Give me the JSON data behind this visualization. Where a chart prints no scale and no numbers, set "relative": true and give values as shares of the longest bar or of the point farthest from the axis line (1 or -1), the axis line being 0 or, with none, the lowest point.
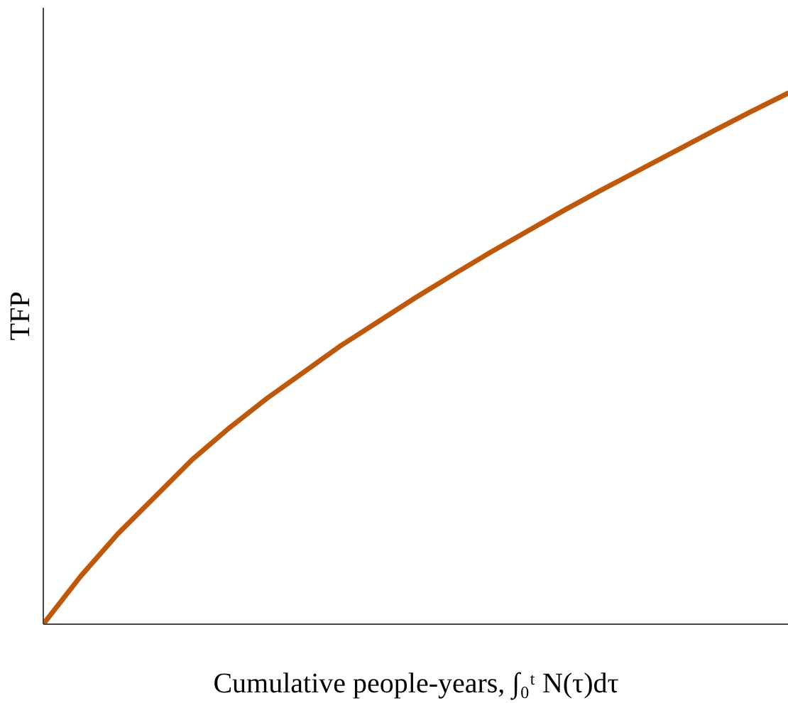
{
  "chart_data": {
    "type": "line",
    "relative": true,
    "xlabel": "Cumulative people-years, ∫₀ᵗ N(τ)dτ",
    "ylabel": "TFP",
    "categories": [
      null,
      null,
      null,
      null,
      null,
      null,
      null,
      null,
      null,
      null,
      null,
      null,
      null,
      null,
      null,
      null,
      null,
      null,
      null,
      null,
      null
    ],
    "series": [
      {
        "color": "#c0580a",
        "values": [
          0,
          0.09,
          0.17,
          0.24,
          0.31,
          0.37,
          0.425,
          0.475,
          0.525,
          0.57,
          0.615,
          0.658,
          0.7,
          0.74,
          0.78,
          0.818,
          0.855,
          0.892,
          0.929,
          0.965,
          1
        ]
      }
    ],
    "grid": false,
    "marker": "none",
    "line_style": "solid"
  }
}
